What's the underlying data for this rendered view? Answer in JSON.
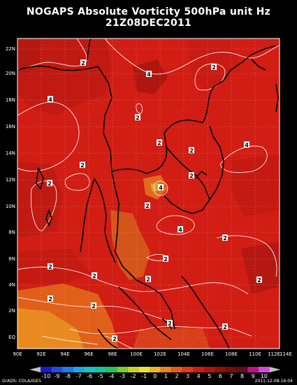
{
  "title": "NOGAPS Absolute Vorticity 500hPa unit Hz",
  "subtitle": "21Z08DEC2011",
  "lat_labels": [
    "22N",
    "20N",
    "18N",
    "16N",
    "14N",
    "12N",
    "10N",
    "8N",
    "6N",
    "4N",
    "2N",
    "EQ"
  ],
  "lon_labels": [
    "90E",
    "92E",
    "94E",
    "96E",
    "98E",
    "100E",
    "102E",
    "104E",
    "106E",
    "108E",
    "110E",
    "112E",
    "114E"
  ],
  "contour_labels": [
    "2",
    "4",
    "2",
    "2",
    "4",
    "2",
    "2",
    "2",
    "4",
    "2",
    "2",
    "4",
    "2",
    "4",
    "2",
    "2",
    "2",
    "2",
    "2",
    "2",
    "2",
    "2",
    "2",
    "2",
    "2"
  ],
  "colorbar": {
    "labels": [
      "-10",
      "-9",
      "-8",
      "-7",
      "-6",
      "-5",
      "-4",
      "-3",
      "-2",
      "-1",
      "0",
      "1",
      "2",
      "3",
      "4",
      "5",
      "6",
      "7",
      "8",
      "9",
      "10"
    ],
    "colors": [
      "#1a1ad0",
      "#1f4fe0",
      "#1e7cf0",
      "#17a9e8",
      "#12c6c6",
      "#10c8a0",
      "#25c45c",
      "#7fcc2a",
      "#c8d22a",
      "#ece235",
      "#f0b22a",
      "#ee8020",
      "#e95a18",
      "#e03818",
      "#cc1d14",
      "#b01410",
      "#92100c",
      "#770c0a",
      "#600c24",
      "#c0108a",
      "#d848d8"
    ]
  },
  "footer_left": "GrADS: COLA/IGES",
  "footer_right": "2011-12-08-16:04"
}
